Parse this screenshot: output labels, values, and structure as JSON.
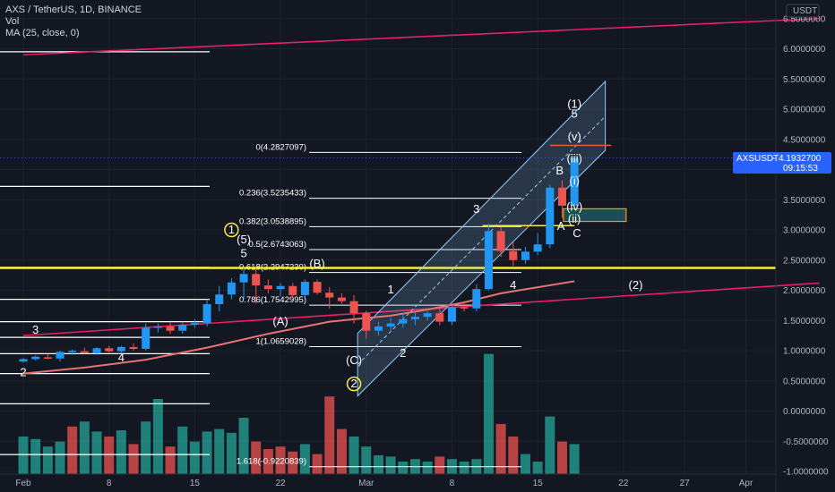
{
  "header": {
    "symbol_line": "AXS / TetherUS, 1D, BINANCE",
    "vol_label": "Vol",
    "ma_label": "MA (25, close, 0)"
  },
  "currency_label": "USDT",
  "price_tag": {
    "symbol": "AXSUSDT",
    "price": "4.1932700",
    "countdown": "09:15:53"
  },
  "colors": {
    "background": "#131722",
    "up": "#2196f3",
    "down": "#ef5350",
    "vol_up": "#26a69a",
    "vol_down": "#ef5350",
    "ma": "#e57373",
    "trendline": "#e91e63",
    "support": "#ffeb3b",
    "channel": "#90caf9",
    "price_tag_bg": "#2962ff"
  },
  "chart_data": {
    "type": "candlestick",
    "x_ticks": [
      {
        "label": "Feb",
        "day": -5
      },
      {
        "label": "8",
        "day": 2
      },
      {
        "label": "15",
        "day": 9
      },
      {
        "label": "22",
        "day": 16
      },
      {
        "label": "Mar",
        "day": 23
      },
      {
        "label": "8",
        "day": 30
      },
      {
        "label": "15",
        "day": 37
      },
      {
        "label": "22",
        "day": 44
      },
      {
        "label": "27",
        "day": 49
      },
      {
        "label": "Apr",
        "day": 54
      }
    ],
    "y_ticks": [
      "6.5000000",
      "6.0000000",
      "5.5000000",
      "5.0000000",
      "4.5000000",
      "4.0000000",
      "3.5000000",
      "3.0000000",
      "2.5000000",
      "2.0000000",
      "1.5000000",
      "1.0000000",
      "0.5000000",
      "0.0000000",
      "-0.5000000",
      "-1.0000000"
    ],
    "ylim": [
      -1.0,
      6.7
    ],
    "candles": [
      {
        "day": -5,
        "o": 0.82,
        "h": 0.88,
        "l": 0.8,
        "c": 0.86
      },
      {
        "day": -4,
        "o": 0.86,
        "h": 0.92,
        "l": 0.84,
        "c": 0.9
      },
      {
        "day": -3,
        "o": 0.89,
        "h": 0.95,
        "l": 0.86,
        "c": 0.88
      },
      {
        "day": -2,
        "o": 0.87,
        "h": 1.0,
        "l": 0.82,
        "c": 0.98
      },
      {
        "day": -1,
        "o": 0.98,
        "h": 1.02,
        "l": 0.93,
        "c": 1.0
      },
      {
        "day": 0,
        "o": 0.99,
        "h": 1.05,
        "l": 0.95,
        "c": 0.96
      },
      {
        "day": 1,
        "o": 0.96,
        "h": 1.06,
        "l": 0.93,
        "c": 1.04
      },
      {
        "day": 2,
        "o": 1.04,
        "h": 1.08,
        "l": 0.97,
        "c": 0.99
      },
      {
        "day": 3,
        "o": 0.99,
        "h": 1.08,
        "l": 0.95,
        "c": 1.06
      },
      {
        "day": 4,
        "o": 1.06,
        "h": 1.12,
        "l": 1.0,
        "c": 1.03
      },
      {
        "day": 5,
        "o": 1.03,
        "h": 1.45,
        "l": 1.0,
        "c": 1.38
      },
      {
        "day": 6,
        "o": 1.38,
        "h": 1.45,
        "l": 1.3,
        "c": 1.4
      },
      {
        "day": 7,
        "o": 1.4,
        "h": 1.48,
        "l": 1.28,
        "c": 1.33
      },
      {
        "day": 8,
        "o": 1.33,
        "h": 1.48,
        "l": 1.28,
        "c": 1.43
      },
      {
        "day": 9,
        "o": 1.43,
        "h": 1.52,
        "l": 1.38,
        "c": 1.46
      },
      {
        "day": 10,
        "o": 1.46,
        "h": 1.85,
        "l": 1.4,
        "c": 1.77
      },
      {
        "day": 11,
        "o": 1.77,
        "h": 2.07,
        "l": 1.65,
        "c": 1.93
      },
      {
        "day": 12,
        "o": 1.93,
        "h": 2.2,
        "l": 1.85,
        "c": 2.13
      },
      {
        "day": 13,
        "o": 2.13,
        "h": 2.38,
        "l": 1.85,
        "c": 2.27
      },
      {
        "day": 14,
        "o": 2.27,
        "h": 2.36,
        "l": 1.78,
        "c": 2.08
      },
      {
        "day": 15,
        "o": 2.08,
        "h": 2.18,
        "l": 1.95,
        "c": 2.02
      },
      {
        "day": 16,
        "o": 2.02,
        "h": 2.12,
        "l": 1.9,
        "c": 2.07
      },
      {
        "day": 17,
        "o": 2.07,
        "h": 2.12,
        "l": 1.85,
        "c": 1.92
      },
      {
        "day": 18,
        "o": 1.92,
        "h": 2.18,
        "l": 1.88,
        "c": 2.14
      },
      {
        "day": 19,
        "o": 2.14,
        "h": 2.18,
        "l": 1.93,
        "c": 1.96
      },
      {
        "day": 20,
        "o": 1.96,
        "h": 2.05,
        "l": 1.7,
        "c": 1.88
      },
      {
        "day": 21,
        "o": 1.88,
        "h": 1.95,
        "l": 1.78,
        "c": 1.82
      },
      {
        "day": 22,
        "o": 1.82,
        "h": 1.92,
        "l": 1.45,
        "c": 1.62
      },
      {
        "day": 23,
        "o": 1.62,
        "h": 1.66,
        "l": 1.2,
        "c": 1.33
      },
      {
        "day": 24,
        "o": 1.33,
        "h": 1.48,
        "l": 1.25,
        "c": 1.4
      },
      {
        "day": 25,
        "o": 1.4,
        "h": 1.55,
        "l": 1.33,
        "c": 1.45
      },
      {
        "day": 26,
        "o": 1.45,
        "h": 1.62,
        "l": 1.38,
        "c": 1.52
      },
      {
        "day": 27,
        "o": 1.52,
        "h": 1.65,
        "l": 1.42,
        "c": 1.56
      },
      {
        "day": 28,
        "o": 1.56,
        "h": 1.65,
        "l": 1.5,
        "c": 1.62
      },
      {
        "day": 29,
        "o": 1.62,
        "h": 1.72,
        "l": 1.42,
        "c": 1.48
      },
      {
        "day": 30,
        "o": 1.48,
        "h": 1.75,
        "l": 1.42,
        "c": 1.72
      },
      {
        "day": 31,
        "o": 1.72,
        "h": 1.8,
        "l": 1.65,
        "c": 1.7
      },
      {
        "day": 32,
        "o": 1.7,
        "h": 2.1,
        "l": 1.65,
        "c": 2.02
      },
      {
        "day": 33,
        "o": 2.02,
        "h": 3.1,
        "l": 2.0,
        "c": 2.98
      },
      {
        "day": 34,
        "o": 2.98,
        "h": 3.05,
        "l": 2.55,
        "c": 2.65
      },
      {
        "day": 35,
        "o": 2.65,
        "h": 2.8,
        "l": 2.4,
        "c": 2.5
      },
      {
        "day": 36,
        "o": 2.5,
        "h": 2.72,
        "l": 2.44,
        "c": 2.64
      },
      {
        "day": 37,
        "o": 2.64,
        "h": 2.95,
        "l": 2.58,
        "c": 2.76
      },
      {
        "day": 38,
        "o": 2.76,
        "h": 3.75,
        "l": 2.7,
        "c": 3.7
      },
      {
        "day": 39,
        "o": 3.7,
        "h": 3.82,
        "l": 3.2,
        "c": 3.4
      },
      {
        "day": 40,
        "o": 3.4,
        "h": 4.2,
        "l": 3.35,
        "c": 4.19
      }
    ],
    "volume_bars": [
      {
        "day": -5,
        "v": 0.3,
        "up": true
      },
      {
        "day": -4,
        "v": 0.28,
        "up": true
      },
      {
        "day": -3,
        "v": 0.22,
        "up": true
      },
      {
        "day": -2,
        "v": 0.26,
        "up": true
      },
      {
        "day": -1,
        "v": 0.38,
        "up": false
      },
      {
        "day": 0,
        "v": 0.42,
        "up": true
      },
      {
        "day": 1,
        "v": 0.34,
        "up": true
      },
      {
        "day": 2,
        "v": 0.3,
        "up": false
      },
      {
        "day": 3,
        "v": 0.35,
        "up": true
      },
      {
        "day": 4,
        "v": 0.24,
        "up": false
      },
      {
        "day": 5,
        "v": 0.42,
        "up": true
      },
      {
        "day": 6,
        "v": 0.6,
        "up": true
      },
      {
        "day": 7,
        "v": 0.22,
        "up": false
      },
      {
        "day": 8,
        "v": 0.38,
        "up": true
      },
      {
        "day": 9,
        "v": 0.26,
        "up": true
      },
      {
        "day": 10,
        "v": 0.34,
        "up": true
      },
      {
        "day": 11,
        "v": 0.36,
        "up": true
      },
      {
        "day": 12,
        "v": 0.33,
        "up": true
      },
      {
        "day": 13,
        "v": 0.45,
        "up": true
      },
      {
        "day": 14,
        "v": 0.26,
        "up": false
      },
      {
        "day": 15,
        "v": 0.2,
        "up": false
      },
      {
        "day": 16,
        "v": 0.22,
        "up": false
      },
      {
        "day": 17,
        "v": 0.18,
        "up": false
      },
      {
        "day": 18,
        "v": 0.24,
        "up": true
      },
      {
        "day": 19,
        "v": 0.16,
        "up": false
      },
      {
        "day": 20,
        "v": 0.62,
        "up": false
      },
      {
        "day": 21,
        "v": 0.36,
        "up": false
      },
      {
        "day": 22,
        "v": 0.3,
        "up": true
      },
      {
        "day": 23,
        "v": 0.22,
        "up": true
      },
      {
        "day": 24,
        "v": 0.15,
        "up": true
      },
      {
        "day": 25,
        "v": 0.14,
        "up": true
      },
      {
        "day": 26,
        "v": 0.1,
        "up": true
      },
      {
        "day": 27,
        "v": 0.12,
        "up": true
      },
      {
        "day": 28,
        "v": 0.1,
        "up": true
      },
      {
        "day": 29,
        "v": 0.14,
        "up": false
      },
      {
        "day": 30,
        "v": 0.12,
        "up": true
      },
      {
        "day": 31,
        "v": 0.1,
        "up": true
      },
      {
        "day": 32,
        "v": 0.12,
        "up": true
      },
      {
        "day": 33,
        "v": 0.96,
        "up": true
      },
      {
        "day": 34,
        "v": 0.4,
        "up": false
      },
      {
        "day": 35,
        "v": 0.3,
        "up": false
      },
      {
        "day": 36,
        "v": 0.16,
        "up": true
      },
      {
        "day": 37,
        "v": 0.1,
        "up": true
      },
      {
        "day": 38,
        "v": 0.46,
        "up": true
      },
      {
        "day": 39,
        "v": 0.26,
        "up": false
      },
      {
        "day": 40,
        "v": 0.24,
        "up": true
      }
    ],
    "ma25": [
      [
        -5,
        0.62
      ],
      [
        0,
        0.72
      ],
      [
        5,
        0.85
      ],
      [
        10,
        1.05
      ],
      [
        15,
        1.28
      ],
      [
        20,
        1.48
      ],
      [
        25,
        1.58
      ],
      [
        28,
        1.68
      ],
      [
        31,
        1.8
      ],
      [
        34,
        1.95
      ],
      [
        37,
        2.05
      ],
      [
        40,
        2.15
      ]
    ],
    "fib_levels": [
      {
        "label": "0(4.2827097)",
        "price": 4.2827097
      },
      {
        "label": "0.236(3.5235433)",
        "price": 3.5235433
      },
      {
        "label": "0.382(3.0538895)",
        "price": 3.0538895
      },
      {
        "label": "0.5(2.6743063)",
        "price": 2.6743063
      },
      {
        "label": "0.618(2.2947230)",
        "price": 2.294723
      },
      {
        "label": "0.786(1.7542995)",
        "price": 1.7542995
      },
      {
        "label": "1(1.0659028)",
        "price": 1.0659028
      },
      {
        "label": "1.618(-0.9220839)",
        "price": -0.9220839
      }
    ],
    "left_levels": [
      5.95,
      3.72,
      2.38,
      1.85,
      1.48,
      1.22,
      0.95,
      0.62,
      0.12,
      -0.72
    ],
    "support_price": 2.37,
    "trendline_top": {
      "x1": -5,
      "y1": 5.9,
      "x2": 60,
      "y2": 6.5
    },
    "trendline_mid": {
      "x1": -5,
      "y1": 1.25,
      "x2": 60,
      "y2": 2.12
    },
    "wave_labels": [
      {
        "text": "2",
        "day": -5,
        "price": 0.58
      },
      {
        "text": "3",
        "day": -4,
        "price": 1.28
      },
      {
        "text": "4",
        "day": 3,
        "price": 0.82
      },
      {
        "text": "(5)",
        "day": 13,
        "price": 2.78
      },
      {
        "text": "5",
        "day": 13,
        "price": 2.55
      },
      {
        "text": "(A)",
        "day": 16,
        "price": 1.42
      },
      {
        "text": "(B)",
        "day": 19,
        "price": 2.38
      },
      {
        "text": "(C)",
        "day": 22,
        "price": 0.78
      },
      {
        "text": "1",
        "day": 25,
        "price": 1.95
      },
      {
        "text": "2",
        "day": 26,
        "price": 0.9
      },
      {
        "text": "3",
        "day": 32,
        "price": 3.28
      },
      {
        "text": "4",
        "day": 35,
        "price": 2.02
      },
      {
        "text": "B",
        "day": 38.8,
        "price": 3.92
      },
      {
        "text": "A",
        "day": 38.9,
        "price": 3.0
      },
      {
        "text": "C",
        "day": 40.2,
        "price": 2.88
      },
      {
        "text": "(iii)",
        "day": 40,
        "price": 4.12
      },
      {
        "text": "(i)",
        "day": 40,
        "price": 3.75
      },
      {
        "text": "(iv)",
        "day": 40,
        "price": 3.32
      },
      {
        "text": "(ii)",
        "day": 40,
        "price": 3.12
      },
      {
        "text": "(v)",
        "day": 40,
        "price": 4.48
      },
      {
        "text": "(1)",
        "day": 40,
        "price": 5.02
      },
      {
        "text": "5",
        "day": 40,
        "price": 4.86
      },
      {
        "text": "(2)",
        "day": 45,
        "price": 2.02
      }
    ],
    "circle_labels": [
      {
        "text": "1",
        "day": 12,
        "price": 3.0,
        "color": "#ffeb3b"
      },
      {
        "text": "2",
        "day": 22,
        "price": 0.45,
        "color": "#ffeb3b"
      }
    ]
  }
}
